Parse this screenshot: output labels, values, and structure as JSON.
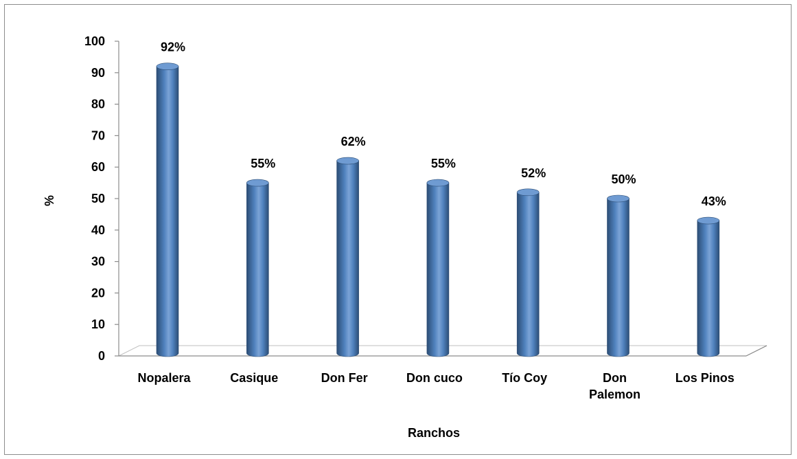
{
  "chart_data": {
    "type": "bar",
    "title": "",
    "xlabel": "Ranchos",
    "ylabel": "%",
    "ylim": [
      0,
      100
    ],
    "yticks": [
      "0",
      "10",
      "20",
      "30",
      "40",
      "50",
      "60",
      "70",
      "80",
      "90",
      "100"
    ],
    "categories": [
      [
        "Nopalera"
      ],
      [
        "Casique"
      ],
      [
        "Don Fer"
      ],
      [
        "Don cuco"
      ],
      [
        "Tío Coy"
      ],
      [
        "Don",
        "Palemon"
      ],
      [
        "Los Pinos"
      ]
    ],
    "values": [
      92,
      55,
      62,
      55,
      52,
      50,
      43
    ],
    "data_labels": [
      "92%",
      "55%",
      "62%",
      "55%",
      "52%",
      "50%",
      "43%"
    ],
    "grid": false,
    "legend": "none",
    "bar_color": "#4f81bd",
    "bar_shade_color": "#2c4d75"
  }
}
